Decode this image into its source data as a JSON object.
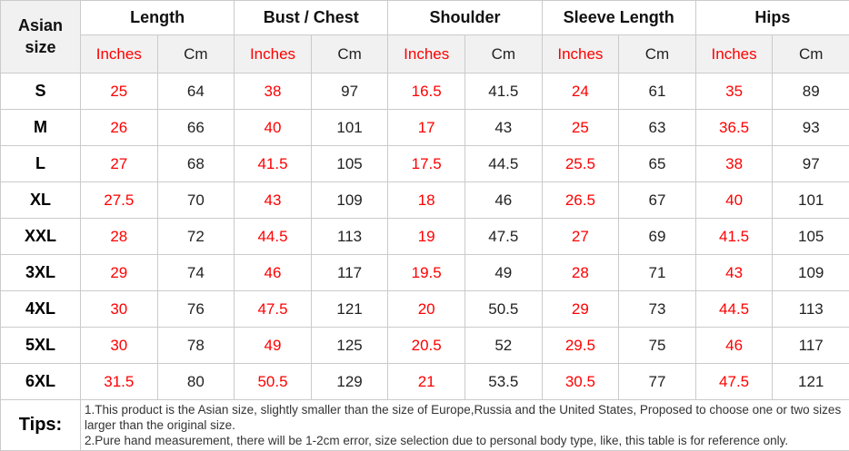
{
  "table": {
    "corner_label": "Asian size",
    "groups": [
      {
        "label": "Length"
      },
      {
        "label": "Bust / Chest"
      },
      {
        "label": "Shoulder"
      },
      {
        "label": "Sleeve Length"
      },
      {
        "label": "Hips"
      }
    ],
    "unit_headers": {
      "inches": "Inches",
      "cm": "Cm"
    },
    "rows": [
      {
        "size": "S",
        "values": [
          25,
          64,
          38,
          97,
          16.5,
          41.5,
          24,
          61,
          35,
          89
        ]
      },
      {
        "size": "M",
        "values": [
          26,
          66,
          40,
          101,
          17,
          43,
          25,
          63,
          36.5,
          93
        ]
      },
      {
        "size": "L",
        "values": [
          27,
          68,
          41.5,
          105,
          17.5,
          44.5,
          25.5,
          65,
          38,
          97
        ]
      },
      {
        "size": "XL",
        "values": [
          27.5,
          70,
          43,
          109,
          18,
          46,
          26.5,
          67,
          40,
          101
        ]
      },
      {
        "size": "XXL",
        "values": [
          28,
          72,
          44.5,
          113,
          19,
          47.5,
          27,
          69,
          41.5,
          105
        ]
      },
      {
        "size": "3XL",
        "values": [
          29,
          74,
          46,
          117,
          19.5,
          49,
          28,
          71,
          43,
          109
        ]
      },
      {
        "size": "4XL",
        "values": [
          30,
          76,
          47.5,
          121,
          20,
          50.5,
          29,
          73,
          44.5,
          113
        ]
      },
      {
        "size": "5XL",
        "values": [
          30,
          78,
          49,
          125,
          20.5,
          52,
          29.5,
          75,
          46,
          117
        ]
      },
      {
        "size": "6XL",
        "values": [
          31.5,
          80,
          50.5,
          129,
          21,
          53.5,
          30.5,
          77,
          47.5,
          121
        ]
      }
    ],
    "tips": {
      "label": "Tips:",
      "lines": [
        "1.This product is the Asian size, slightly smaller than the size of Europe,Russia and the United States, Proposed to choose one or two sizes larger than the original size.",
        "2.Pure hand measurement, there will be 1-2cm error, size selection due to personal body type, like, this table is for reference only."
      ]
    },
    "colors": {
      "accent_red": "#fe0000",
      "text_black": "#222222",
      "header_bg": "#f1f1f1",
      "border": "#cbcbcb"
    }
  }
}
